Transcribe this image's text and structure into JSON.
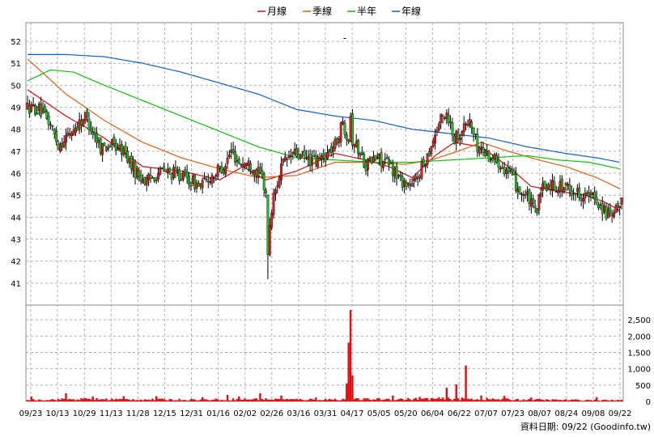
{
  "chart_data": {
    "type": "candlestick",
    "legend": {
      "position": "top",
      "items": [
        {
          "label": "月線",
          "color": "#d01010"
        },
        {
          "label": "季線",
          "color": "#e06010"
        },
        {
          "label": "半年",
          "color": "#10c010"
        },
        {
          "label": "年線",
          "color": "#1060d0"
        }
      ]
    },
    "price_axis": {
      "min": 41,
      "max": 52,
      "ticks": [
        41,
        42,
        43,
        44,
        45,
        46,
        47,
        48,
        49,
        50,
        51,
        52
      ]
    },
    "volume_axis": {
      "min": 0,
      "max": 2500,
      "ticks": [
        0,
        500,
        1000,
        1500,
        2000,
        2500
      ],
      "tick_labels": [
        "0",
        "500",
        "1,000",
        "1,500",
        "2,000",
        "2,500"
      ]
    },
    "x_tick_labels": [
      "09/23",
      "10/13",
      "10/29",
      "11/13",
      "11/28",
      "12/15",
      "12/31",
      "01/16",
      "02/02",
      "02/26",
      "03/16",
      "03/31",
      "04/17",
      "05/05",
      "05/20",
      "06/04",
      "06/22",
      "07/07",
      "07/23",
      "08/07",
      "08/24",
      "09/08",
      "09/22"
    ],
    "price_anchors": [
      [
        0,
        49.0
      ],
      [
        6,
        48.9
      ],
      [
        12,
        48.2
      ],
      [
        16,
        47.3
      ],
      [
        22,
        47.8
      ],
      [
        30,
        48.6
      ],
      [
        38,
        47.2
      ],
      [
        44,
        47.3
      ],
      [
        50,
        47.0
      ],
      [
        56,
        46.1
      ],
      [
        62,
        45.6
      ],
      [
        66,
        45.9
      ],
      [
        70,
        46.1
      ],
      [
        80,
        45.9
      ],
      [
        90,
        45.4
      ],
      [
        96,
        45.9
      ],
      [
        102,
        46.3
      ],
      [
        106,
        47.0
      ],
      [
        110,
        46.5
      ],
      [
        116,
        46.4
      ],
      [
        122,
        45.8
      ],
      [
        124,
        45.1
      ],
      [
        126,
        43.7
      ],
      [
        128,
        44.9
      ],
      [
        132,
        46.3
      ],
      [
        138,
        46.9
      ],
      [
        144,
        46.7
      ],
      [
        150,
        46.5
      ],
      [
        156,
        46.9
      ],
      [
        160,
        47.3
      ],
      [
        164,
        48.3
      ],
      [
        166,
        47.8
      ],
      [
        170,
        47.4
      ],
      [
        176,
        46.4
      ],
      [
        182,
        46.7
      ],
      [
        188,
        46.4
      ],
      [
        194,
        45.7
      ],
      [
        200,
        45.4
      ],
      [
        206,
        46.4
      ],
      [
        210,
        47.3
      ],
      [
        214,
        48.3
      ],
      [
        218,
        48.8
      ],
      [
        222,
        47.6
      ],
      [
        226,
        48.0
      ],
      [
        230,
        48.4
      ],
      [
        234,
        47.2
      ],
      [
        240,
        46.8
      ],
      [
        246,
        46.5
      ],
      [
        252,
        45.8
      ],
      [
        256,
        45.2
      ],
      [
        260,
        44.9
      ],
      [
        264,
        44.2
      ],
      [
        268,
        45.3
      ],
      [
        272,
        45.5
      ],
      [
        278,
        45.4
      ],
      [
        284,
        45.2
      ],
      [
        290,
        45.0
      ],
      [
        296,
        44.8
      ],
      [
        300,
        44.3
      ],
      [
        304,
        43.9
      ],
      [
        308,
        44.6
      ]
    ],
    "series_anchors": {
      "月線": [
        [
          0,
          49.8
        ],
        [
          20,
          48.6
        ],
        [
          40,
          47.6
        ],
        [
          60,
          46.3
        ],
        [
          80,
          46.1
        ],
        [
          100,
          45.7
        ],
        [
          112,
          46.3
        ],
        [
          124,
          45.7
        ],
        [
          140,
          46.1
        ],
        [
          160,
          46.9
        ],
        [
          176,
          46.6
        ],
        [
          188,
          46.3
        ],
        [
          200,
          45.8
        ],
        [
          212,
          46.8
        ],
        [
          222,
          47.4
        ],
        [
          236,
          47.2
        ],
        [
          250,
          46.3
        ],
        [
          262,
          45.4
        ],
        [
          274,
          45.2
        ],
        [
          290,
          45.0
        ],
        [
          300,
          44.7
        ],
        [
          308,
          44.3
        ]
      ],
      "季線": [
        [
          0,
          51.2
        ],
        [
          20,
          49.6
        ],
        [
          40,
          48.4
        ],
        [
          60,
          47.4
        ],
        [
          80,
          46.7
        ],
        [
          100,
          46.2
        ],
        [
          120,
          45.8
        ],
        [
          140,
          45.9
        ],
        [
          160,
          46.5
        ],
        [
          180,
          46.5
        ],
        [
          196,
          46.4
        ],
        [
          210,
          46.6
        ],
        [
          224,
          47.0
        ],
        [
          236,
          47.4
        ],
        [
          250,
          47.0
        ],
        [
          266,
          46.6
        ],
        [
          280,
          46.3
        ],
        [
          296,
          45.8
        ],
        [
          308,
          45.3
        ]
      ],
      "半年": [
        [
          0,
          50.2
        ],
        [
          12,
          50.7
        ],
        [
          24,
          50.6
        ],
        [
          40,
          50.0
        ],
        [
          60,
          49.3
        ],
        [
          80,
          48.6
        ],
        [
          100,
          47.9
        ],
        [
          120,
          47.2
        ],
        [
          140,
          46.7
        ],
        [
          160,
          46.6
        ],
        [
          180,
          46.5
        ],
        [
          200,
          46.5
        ],
        [
          220,
          46.6
        ],
        [
          240,
          46.7
        ],
        [
          260,
          46.8
        ],
        [
          276,
          46.6
        ],
        [
          292,
          46.5
        ],
        [
          308,
          46.2
        ]
      ],
      "年線": [
        [
          0,
          51.4
        ],
        [
          20,
          51.4
        ],
        [
          40,
          51.3
        ],
        [
          60,
          51.0
        ],
        [
          80,
          50.6
        ],
        [
          100,
          50.1
        ],
        [
          120,
          49.6
        ],
        [
          140,
          48.9
        ],
        [
          160,
          48.6
        ],
        [
          180,
          48.4
        ],
        [
          200,
          48.0
        ],
        [
          220,
          47.8
        ],
        [
          240,
          47.6
        ],
        [
          260,
          47.2
        ],
        [
          280,
          46.9
        ],
        [
          296,
          46.7
        ],
        [
          308,
          46.5
        ]
      ]
    },
    "volume_anchors": [
      [
        0,
        40
      ],
      [
        30,
        60
      ],
      [
        60,
        50
      ],
      [
        90,
        45
      ],
      [
        120,
        60
      ],
      [
        140,
        50
      ],
      [
        170,
        55
      ],
      [
        195,
        60
      ],
      [
        215,
        70
      ],
      [
        240,
        60
      ],
      [
        260,
        45
      ],
      [
        290,
        35
      ],
      [
        308,
        30
      ]
    ],
    "volume_spikes": [
      [
        2,
        150
      ],
      [
        20,
        250
      ],
      [
        34,
        150
      ],
      [
        50,
        160
      ],
      [
        67,
        160
      ],
      [
        91,
        130
      ],
      [
        104,
        200
      ],
      [
        110,
        150
      ],
      [
        121,
        250
      ],
      [
        132,
        180
      ],
      [
        150,
        120
      ],
      [
        166,
        550
      ],
      [
        167,
        1800
      ],
      [
        168,
        2800
      ],
      [
        169,
        800
      ],
      [
        190,
        180
      ],
      [
        204,
        140
      ],
      [
        218,
        420
      ],
      [
        223,
        520
      ],
      [
        228,
        1100
      ],
      [
        236,
        180
      ],
      [
        248,
        170
      ],
      [
        262,
        120
      ],
      [
        296,
        130
      ]
    ],
    "source_text": "資料日期: 09/22  (Goodinfo.tw)",
    "title_marker": "-"
  }
}
